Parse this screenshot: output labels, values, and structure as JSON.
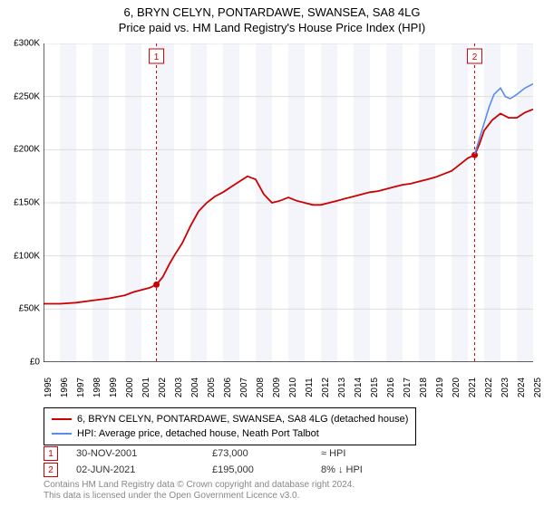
{
  "chart": {
    "type": "line",
    "title_line1": "6, BRYN CELYN, PONTARDAWE, SWANSEA, SA8 4LG",
    "title_line2": "Price paid vs. HM Land Registry's House Price Index (HPI)",
    "title_fontsize": 13,
    "background_color": "#ffffff",
    "plot_band_color": "#f3f5fb",
    "axis_color": "#000000",
    "grid_color": "#dddddd",
    "tick_fontsize": 10,
    "y": {
      "min": 0,
      "max": 300000,
      "step": 50000,
      "labels": [
        "£0",
        "£50K",
        "£100K",
        "£150K",
        "£200K",
        "£250K",
        "£300K"
      ]
    },
    "x": {
      "min": 1995,
      "max": 2025,
      "labels": [
        "1995",
        "1996",
        "1997",
        "1998",
        "1999",
        "2000",
        "2001",
        "2002",
        "2003",
        "2004",
        "2005",
        "2006",
        "2007",
        "2008",
        "2009",
        "2010",
        "2011",
        "2012",
        "2013",
        "2014",
        "2015",
        "2016",
        "2017",
        "2018",
        "2019",
        "2020",
        "2021",
        "2022",
        "2023",
        "2024",
        "2025"
      ]
    },
    "series": [
      {
        "name": "6, BRYN CELYN, PONTARDAWE, SWANSEA, SA8 4LG (detached house)",
        "color": "#cc0000",
        "line_width": 1.8,
        "data": [
          [
            1995,
            55000
          ],
          [
            1996,
            55000
          ],
          [
            1997,
            56000
          ],
          [
            1998,
            58000
          ],
          [
            1999,
            60000
          ],
          [
            2000,
            63000
          ],
          [
            2000.5,
            66000
          ],
          [
            2001,
            68000
          ],
          [
            2001.5,
            70000
          ],
          [
            2001.92,
            73000
          ],
          [
            2002.3,
            80000
          ],
          [
            2002.7,
            92000
          ],
          [
            2003,
            100000
          ],
          [
            2003.5,
            112000
          ],
          [
            2004,
            128000
          ],
          [
            2004.5,
            142000
          ],
          [
            2005,
            150000
          ],
          [
            2005.5,
            156000
          ],
          [
            2006,
            160000
          ],
          [
            2006.5,
            165000
          ],
          [
            2007,
            170000
          ],
          [
            2007.5,
            175000
          ],
          [
            2008,
            172000
          ],
          [
            2008.5,
            158000
          ],
          [
            2009,
            150000
          ],
          [
            2009.5,
            152000
          ],
          [
            2010,
            155000
          ],
          [
            2010.5,
            152000
          ],
          [
            2011,
            150000
          ],
          [
            2011.5,
            148000
          ],
          [
            2012,
            148000
          ],
          [
            2012.5,
            150000
          ],
          [
            2013,
            152000
          ],
          [
            2013.5,
            154000
          ],
          [
            2014,
            156000
          ],
          [
            2014.5,
            158000
          ],
          [
            2015,
            160000
          ],
          [
            2015.5,
            161000
          ],
          [
            2016,
            163000
          ],
          [
            2016.5,
            165000
          ],
          [
            2017,
            167000
          ],
          [
            2017.5,
            168000
          ],
          [
            2018,
            170000
          ],
          [
            2018.5,
            172000
          ],
          [
            2019,
            174000
          ],
          [
            2019.5,
            177000
          ],
          [
            2020,
            180000
          ],
          [
            2020.5,
            186000
          ],
          [
            2021,
            192000
          ],
          [
            2021.42,
            195000
          ],
          [
            2021.7,
            205000
          ],
          [
            2022,
            218000
          ],
          [
            2022.5,
            228000
          ],
          [
            2023,
            234000
          ],
          [
            2023.5,
            230000
          ],
          [
            2024,
            230000
          ],
          [
            2024.5,
            235000
          ],
          [
            2025,
            238000
          ]
        ]
      },
      {
        "name": "HPI: Average price, detached house, Neath Port Talbot",
        "color": "#5b8def",
        "line_width": 1.6,
        "data": [
          [
            2021.42,
            196000
          ],
          [
            2021.7,
            210000
          ],
          [
            2022,
            225000
          ],
          [
            2022.3,
            240000
          ],
          [
            2022.6,
            252000
          ],
          [
            2023,
            258000
          ],
          [
            2023.3,
            250000
          ],
          [
            2023.6,
            248000
          ],
          [
            2024,
            252000
          ],
          [
            2024.5,
            258000
          ],
          [
            2025,
            262000
          ]
        ]
      }
    ],
    "markers": [
      {
        "id": "1",
        "x": 2001.92,
        "y": 73000,
        "date": "30-NOV-2001",
        "price": "£73,000",
        "delta": "≈ HPI",
        "line_color": "#cc0000",
        "line_dash": "3,3"
      },
      {
        "id": "2",
        "x": 2021.42,
        "y": 195000,
        "date": "02-JUN-2021",
        "price": "£195,000",
        "delta": "8% ↓ HPI",
        "line_color": "#cc0000",
        "line_dash": "3,3"
      }
    ]
  },
  "legend": {
    "border_color": "#000000",
    "fontsize": 11
  },
  "footer": {
    "line1": "Contains HM Land Registry data © Crown copyright and database right 2024.",
    "line2": "This data is licensed under the Open Government Licence v3.0.",
    "color": "#888888",
    "fontsize": 10
  }
}
